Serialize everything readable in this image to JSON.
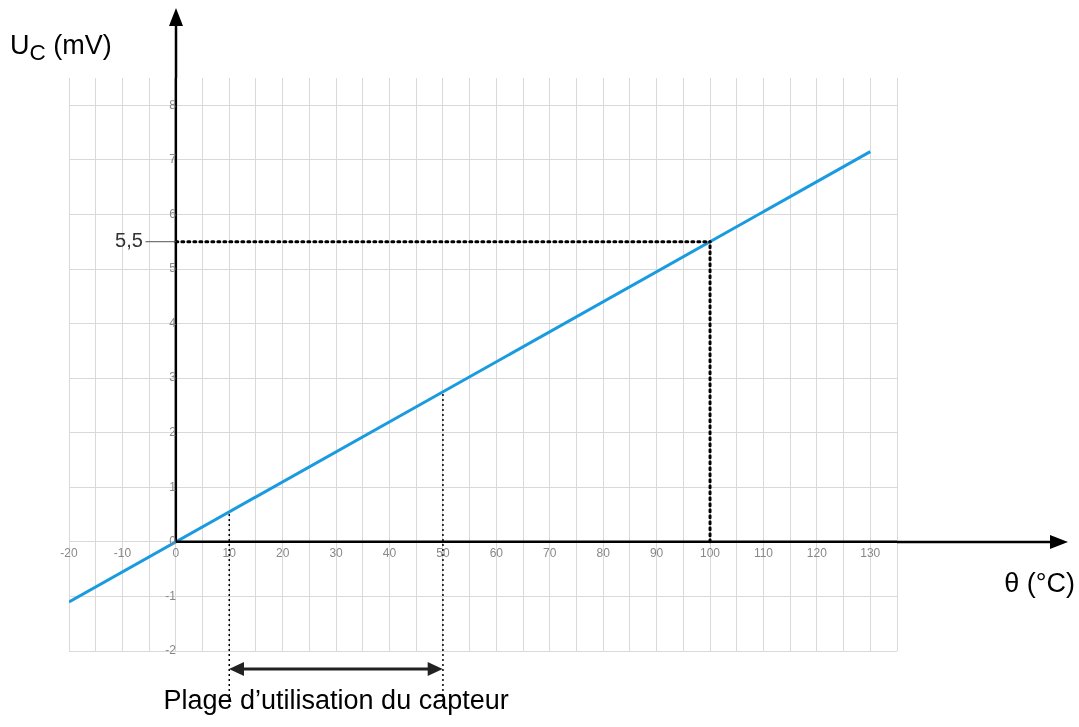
{
  "chart_data": {
    "type": "line",
    "xlabel": "θ (°C)",
    "ylabel": "U$_{C}$ (mV)",
    "annotations": [
      "Plage d’utilisation du capteur"
    ],
    "x": [
      -20,
      130
    ],
    "series": [
      {
        "color": "#1a9be0",
        "values": [
          -1.1,
          7.15
        ]
      }
    ],
    "xlim": [
      -20,
      135
    ],
    "ylim": [
      -2,
      8.5
    ],
    "xticks": [
      -20,
      {
        "value": -15,
        "label": null
      },
      -10,
      {
        "value": -5,
        "label": null
      },
      0,
      {
        "value": 5,
        "label": null
      },
      10,
      {
        "value": 15,
        "label": null
      },
      20,
      {
        "value": 25,
        "label": null
      },
      30,
      {
        "value": 35,
        "label": null
      },
      40,
      {
        "value": 45,
        "label": null
      },
      50,
      {
        "value": 55,
        "label": null
      },
      60,
      {
        "value": 65,
        "label": null
      },
      70,
      {
        "value": 75,
        "label": null
      },
      80,
      {
        "value": 85,
        "label": null
      },
      90,
      {
        "value": 95,
        "label": null
      },
      100,
      {
        "value": 105,
        "label": null
      },
      110,
      {
        "value": 115,
        "label": null
      },
      120,
      {
        "value": 125,
        "label": null
      },
      130,
      {
        "value": 135,
        "label": null
      }
    ],
    "yticks": [
      -2,
      -1,
      0,
      1,
      2,
      3,
      4,
      5,
      6,
      7,
      8
    ],
    "grid": true,
    "marker": "none",
    "line_style": "solid",
    "ref_lines": [
      {
        "axis": "x",
        "value": 10,
        "line_style": "dotted",
        "color": "#000000"
      },
      {
        "axis": "x",
        "value": 50,
        "line_style": "dotted",
        "color": "#000000"
      },
      {
        "axis": "y",
        "value": 5.5,
        "label": "5,5",
        "line_style": "dotted",
        "color": "#000000"
      },
      {
        "axis": "x",
        "value": 100,
        "line_style": "dotted",
        "color": "#000000"
      }
    ]
  }
}
